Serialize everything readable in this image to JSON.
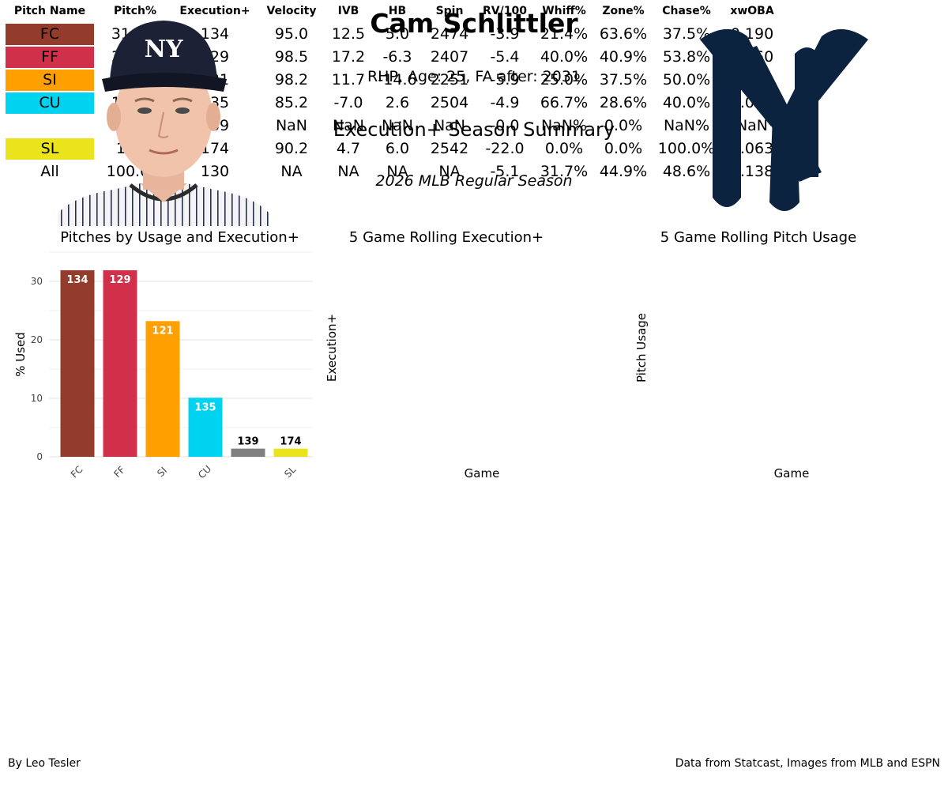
{
  "header": {
    "player_name": "Cam Schlittler",
    "player_meta": "RHP, Age: 25, FA after: 2031",
    "report_title": "Execution+ Season Summary",
    "season": "2026 MLB Regular Season"
  },
  "images": {
    "headshot": "player-headshot",
    "team_logo": "new-york-yankees-logo"
  },
  "colors": {
    "FC": "#933c2b",
    "FF": "#d1304b",
    "SI": "#ff9f00",
    "CU": "#00d3ef",
    "unnamed": "#808080",
    "SL": "#ebe41c",
    "logo_navy": "#0c2340"
  },
  "panels": {
    "usage_title": "Pitches by Usage and Execution+",
    "rolling_exec_title": "5 Game Rolling Execution+",
    "rolling_usage_title": "5 Game Rolling Pitch Usage"
  },
  "chart_data": [
    {
      "type": "bar",
      "categories": [
        "FC",
        "FF",
        "SI",
        "CU",
        "",
        "SL"
      ],
      "values": [
        31.9,
        31.9,
        23.2,
        10.1,
        1.4,
        1.4
      ],
      "data_labels": [
        "134",
        "129",
        "121",
        "135",
        "139",
        "174"
      ],
      "xlabel": "",
      "ylabel": "% Used",
      "yticks": [
        0,
        10,
        20,
        30
      ],
      "ylim": [
        0,
        35
      ],
      "grid": true
    },
    {
      "type": "line",
      "xlabel": "Game",
      "ylabel": "Execution+",
      "series": []
    },
    {
      "type": "line",
      "xlabel": "Game",
      "ylabel": "Pitch Usage",
      "series": []
    }
  ],
  "table": {
    "columns": [
      "Pitch Name",
      "Pitch%",
      "Execution+",
      "Velocity",
      "IVB",
      "HB",
      "Spin",
      "RV/100",
      "Whiff%",
      "Zone%",
      "Chase%",
      "xwOBA"
    ],
    "rows": [
      {
        "pitch": "FC",
        "color": "#933c2b",
        "cells": [
          "31.9%",
          "134",
          "95.0",
          "12.5",
          "5.0",
          "2474",
          "-3.9",
          "21.4%",
          "63.6%",
          "37.5%",
          "0.190"
        ]
      },
      {
        "pitch": "FF",
        "color": "#d1304b",
        "cells": [
          "31.9%",
          "129",
          "98.5",
          "17.2",
          "-6.3",
          "2407",
          "-5.4",
          "40.0%",
          "40.9%",
          "53.8%",
          "0.160"
        ]
      },
      {
        "pitch": "SI",
        "color": "#ff9f00",
        "cells": [
          "23.2%",
          "121",
          "98.2",
          "11.7",
          "-14.6",
          "2251",
          "-5.9",
          "25.0%",
          "37.5%",
          "50.0%",
          "0.150"
        ]
      },
      {
        "pitch": "CU",
        "color": "#00d3ef",
        "cells": [
          "10.1%",
          "135",
          "85.2",
          "-7.0",
          "2.6",
          "2504",
          "-4.9",
          "66.7%",
          "28.6%",
          "40.0%",
          "0.011"
        ]
      },
      {
        "pitch": "",
        "color": "#ffffff",
        "cells": [
          "1.4%",
          "139",
          "NaN",
          "NaN",
          "NaN",
          "NaN",
          "-0.0",
          "NaN%",
          "0.0%",
          "NaN%",
          "NaN"
        ]
      },
      {
        "pitch": "SL",
        "color": "#ebe41c",
        "cells": [
          "1.4%",
          "174",
          "90.2",
          "4.7",
          "6.0",
          "2542",
          "-22.0",
          "0.0%",
          "0.0%",
          "100.0%",
          "0.063"
        ]
      },
      {
        "pitch": "All",
        "color": "#ffffff",
        "cells": [
          "100.0%",
          "130",
          "NA",
          "NA",
          "NA",
          "NA",
          "-5.1",
          "31.7%",
          "44.9%",
          "48.6%",
          "0.138"
        ]
      }
    ]
  },
  "footer": {
    "credit_left": "By Leo Tesler",
    "credit_right": "Data from Statcast, Images from MLB and ESPN"
  }
}
